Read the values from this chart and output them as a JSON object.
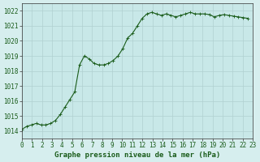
{
  "title": "Graphe pression niveau de la mer (hPa)",
  "xlabel": "Graphe pression niveau de la mer (hPa)",
  "background_color": "#d6eeee",
  "plot_bg_color": "#c8e8e8",
  "line_color": "#1a5c1a",
  "marker_color": "#1a5c1a",
  "grid_color": "#b0d0d0",
  "xlim": [
    0,
    23
  ],
  "ylim": [
    1013.5,
    1022.5
  ],
  "yticks": [
    1014,
    1015,
    1016,
    1017,
    1018,
    1019,
    1020,
    1021,
    1022
  ],
  "xticks": [
    0,
    1,
    2,
    3,
    4,
    5,
    6,
    7,
    8,
    9,
    10,
    11,
    12,
    13,
    14,
    15,
    16,
    17,
    18,
    19,
    20,
    21,
    22,
    23
  ],
  "pressure_data": [
    1014.1,
    1014.3,
    1014.4,
    1014.5,
    1014.4,
    1014.4,
    1014.5,
    1014.7,
    1015.1,
    1015.6,
    1016.1,
    1016.6,
    1018.4,
    1019.0,
    1018.8,
    1018.5,
    1018.4,
    1018.4,
    1018.5,
    1018.7,
    1019.0,
    1019.5,
    1020.2,
    1020.5,
    1021.0,
    1021.5,
    1021.8,
    1021.9,
    1021.8,
    1021.7,
    1021.8,
    1021.7,
    1021.6,
    1021.7,
    1021.8,
    1021.9,
    1021.8,
    1021.8,
    1021.8,
    1021.75,
    1021.6,
    1021.7,
    1021.75,
    1021.7,
    1021.65,
    1021.6,
    1021.55,
    1021.5
  ],
  "x_fine": [
    0.0,
    0.479,
    0.958,
    1.438,
    1.917,
    2.396,
    2.875,
    3.354,
    3.833,
    4.313,
    4.792,
    5.271,
    5.75,
    6.229,
    6.708,
    7.188,
    7.667,
    8.146,
    8.625,
    9.104,
    9.583,
    10.063,
    10.542,
    11.021,
    11.5,
    11.979,
    12.458,
    12.938,
    13.417,
    13.896,
    14.375,
    14.854,
    15.333,
    15.813,
    16.292,
    16.771,
    17.25,
    17.729,
    18.208,
    18.688,
    19.167,
    19.646,
    20.125,
    20.604,
    21.083,
    21.563,
    22.042,
    22.521
  ]
}
